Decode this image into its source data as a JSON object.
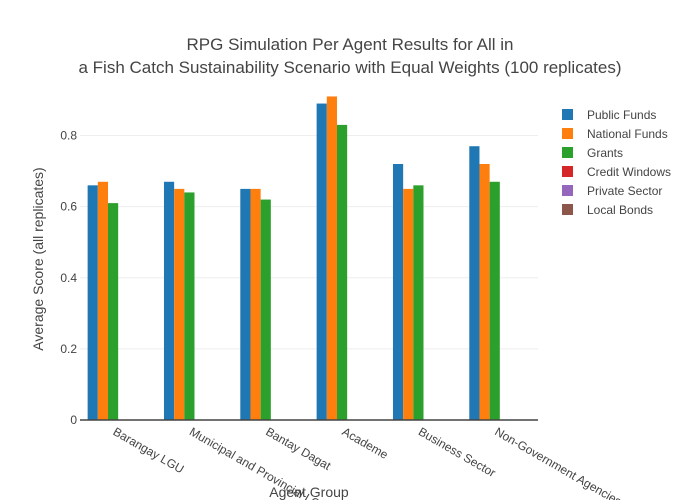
{
  "chart_data": {
    "type": "bar",
    "title_lines": [
      "RPG Simulation Per Agent Results for All in",
      "a Fish Catch Sustainability Scenario with Equal Weights (100 replicates)"
    ],
    "xlabel": "Agent Group",
    "ylabel": "Average Score (all replicates)",
    "categories": [
      "Barangay LGU",
      "Municipal and Provincial LGU",
      "Bantay Dagat",
      "Academe",
      "Business Sector",
      "Non-Government Agencies"
    ],
    "series": [
      {
        "name": "Public Funds",
        "color": "#1f77b4",
        "values": [
          0.66,
          0.67,
          0.65,
          0.89,
          0.72,
          0.77
        ]
      },
      {
        "name": "National Funds",
        "color": "#ff7f0e",
        "values": [
          0.67,
          0.65,
          0.65,
          0.91,
          0.65,
          0.72
        ]
      },
      {
        "name": "Grants",
        "color": "#2ca02c",
        "values": [
          0.61,
          0.64,
          0.62,
          0.83,
          0.66,
          0.67
        ]
      },
      {
        "name": "Credit Windows",
        "color": "#d62728",
        "values": [
          0,
          0,
          0,
          0,
          0,
          0
        ]
      },
      {
        "name": "Private Sector",
        "color": "#9467bd",
        "values": [
          0,
          0,
          0,
          0,
          0,
          0
        ]
      },
      {
        "name": "Local Bonds",
        "color": "#8c564b",
        "values": [
          0,
          0,
          0,
          0,
          0,
          0
        ]
      }
    ],
    "ylim": [
      0,
      0.9
    ],
    "yticks": [
      0,
      0.2,
      0.4,
      0.6,
      0.8
    ],
    "grid": true,
    "legend_position": "right"
  }
}
